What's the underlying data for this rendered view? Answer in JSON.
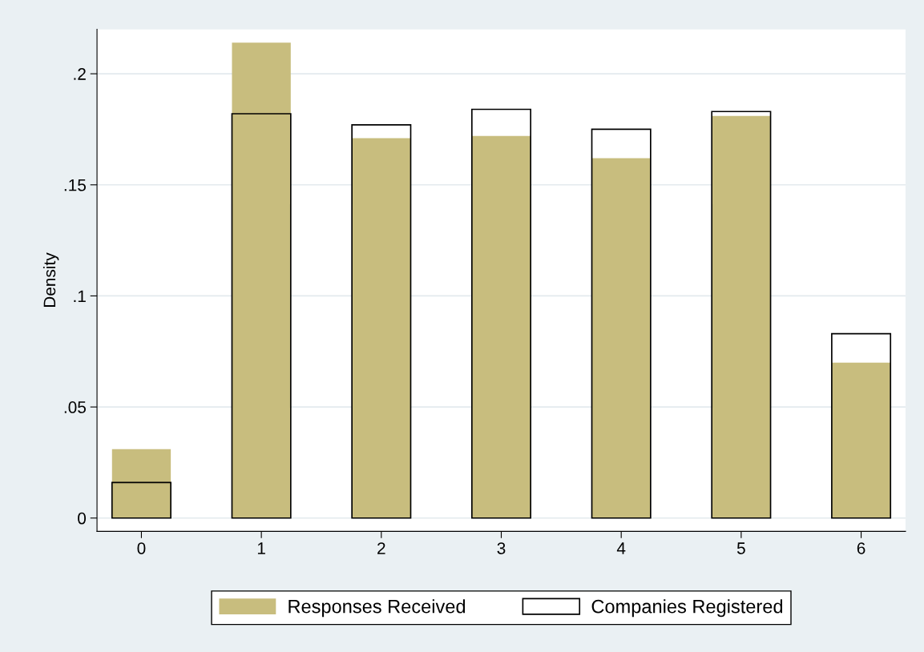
{
  "chart_data": {
    "type": "bar",
    "ylabel": "Density",
    "categories": [
      "0",
      "1",
      "2",
      "3",
      "4",
      "5",
      "6"
    ],
    "series": [
      {
        "name": "Responses Received",
        "color": "#c8bd7e",
        "values": [
          0.031,
          0.214,
          0.171,
          0.172,
          0.162,
          0.181,
          0.07
        ]
      },
      {
        "name": "Companies Registered",
        "color": "#000000",
        "values": [
          0.016,
          0.182,
          0.177,
          0.184,
          0.175,
          0.183,
          0.083
        ]
      }
    ],
    "ylim": [
      -0.006,
      0.22
    ],
    "yticks": [
      {
        "value": 0,
        "label": "0"
      },
      {
        "value": 0.05,
        "label": ".05"
      },
      {
        "value": 0.1,
        "label": ".1"
      },
      {
        "value": 0.15,
        "label": ".15"
      },
      {
        "value": 0.2,
        "label": ".2"
      }
    ],
    "grid": "y",
    "legend": "bottom"
  }
}
